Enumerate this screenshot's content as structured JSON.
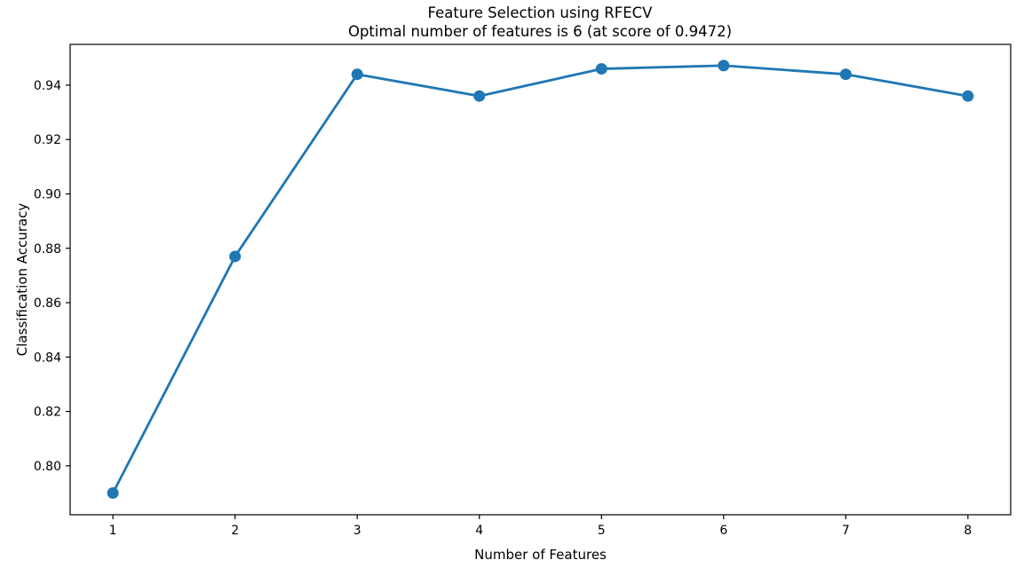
{
  "chart_data": {
    "type": "line",
    "title": "Feature Selection using RFECV",
    "subtitle": "Optimal number of features is 6 (at score of 0.9472)",
    "xlabel": "Number of Features",
    "ylabel": "Classification Accuracy",
    "x": [
      1,
      2,
      3,
      4,
      5,
      6,
      7,
      8
    ],
    "values": [
      0.79,
      0.877,
      0.944,
      0.936,
      0.946,
      0.9472,
      0.944,
      0.936
    ],
    "optimal_n_features": 6,
    "optimal_score": 0.9472,
    "xtick_values": [
      1,
      2,
      3,
      4,
      5,
      6,
      7,
      8
    ],
    "xtick_labels": [
      "1",
      "2",
      "3",
      "4",
      "5",
      "6",
      "7",
      "8"
    ],
    "ytick_values": [
      0.8,
      0.82,
      0.84,
      0.86,
      0.88,
      0.9,
      0.92,
      0.94
    ],
    "ytick_labels": [
      "0.80",
      "0.82",
      "0.84",
      "0.86",
      "0.88",
      "0.90",
      "0.92",
      "0.94"
    ],
    "xlim": [
      0.65,
      8.35
    ],
    "ylim": [
      0.782,
      0.955
    ],
    "line_color": "#1f77b4",
    "marker": "circle",
    "grid": false,
    "legend": null,
    "background": "#ffffff"
  }
}
